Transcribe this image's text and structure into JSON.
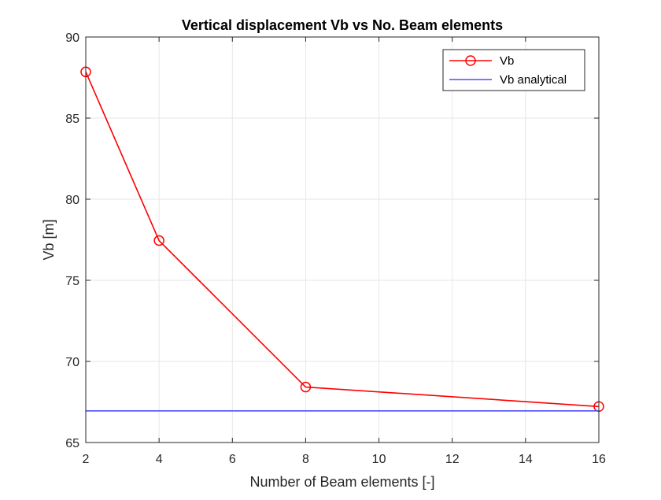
{
  "chart_data": {
    "type": "line",
    "title": "Vertical displacement Vb vs No. Beam elements",
    "xlabel": "Number of Beam elements [-]",
    "ylabel": "Vb [m]",
    "xlim": [
      2,
      16
    ],
    "ylim": [
      65,
      90
    ],
    "xticks": [
      2,
      4,
      6,
      8,
      10,
      12,
      14,
      16
    ],
    "yticks": [
      65,
      70,
      75,
      80,
      85,
      90
    ],
    "grid": true,
    "legend_position": "top-right",
    "series": [
      {
        "name": "Vb",
        "color": "#ff0000",
        "marker": "circle",
        "x": [
          2,
          4,
          8,
          16
        ],
        "y": [
          87.85,
          77.45,
          68.42,
          67.22
        ]
      },
      {
        "name": "Vb analytical",
        "color": "#4d4dff",
        "marker": "none",
        "x": [
          2,
          16
        ],
        "y": [
          66.95,
          66.95
        ]
      }
    ]
  }
}
